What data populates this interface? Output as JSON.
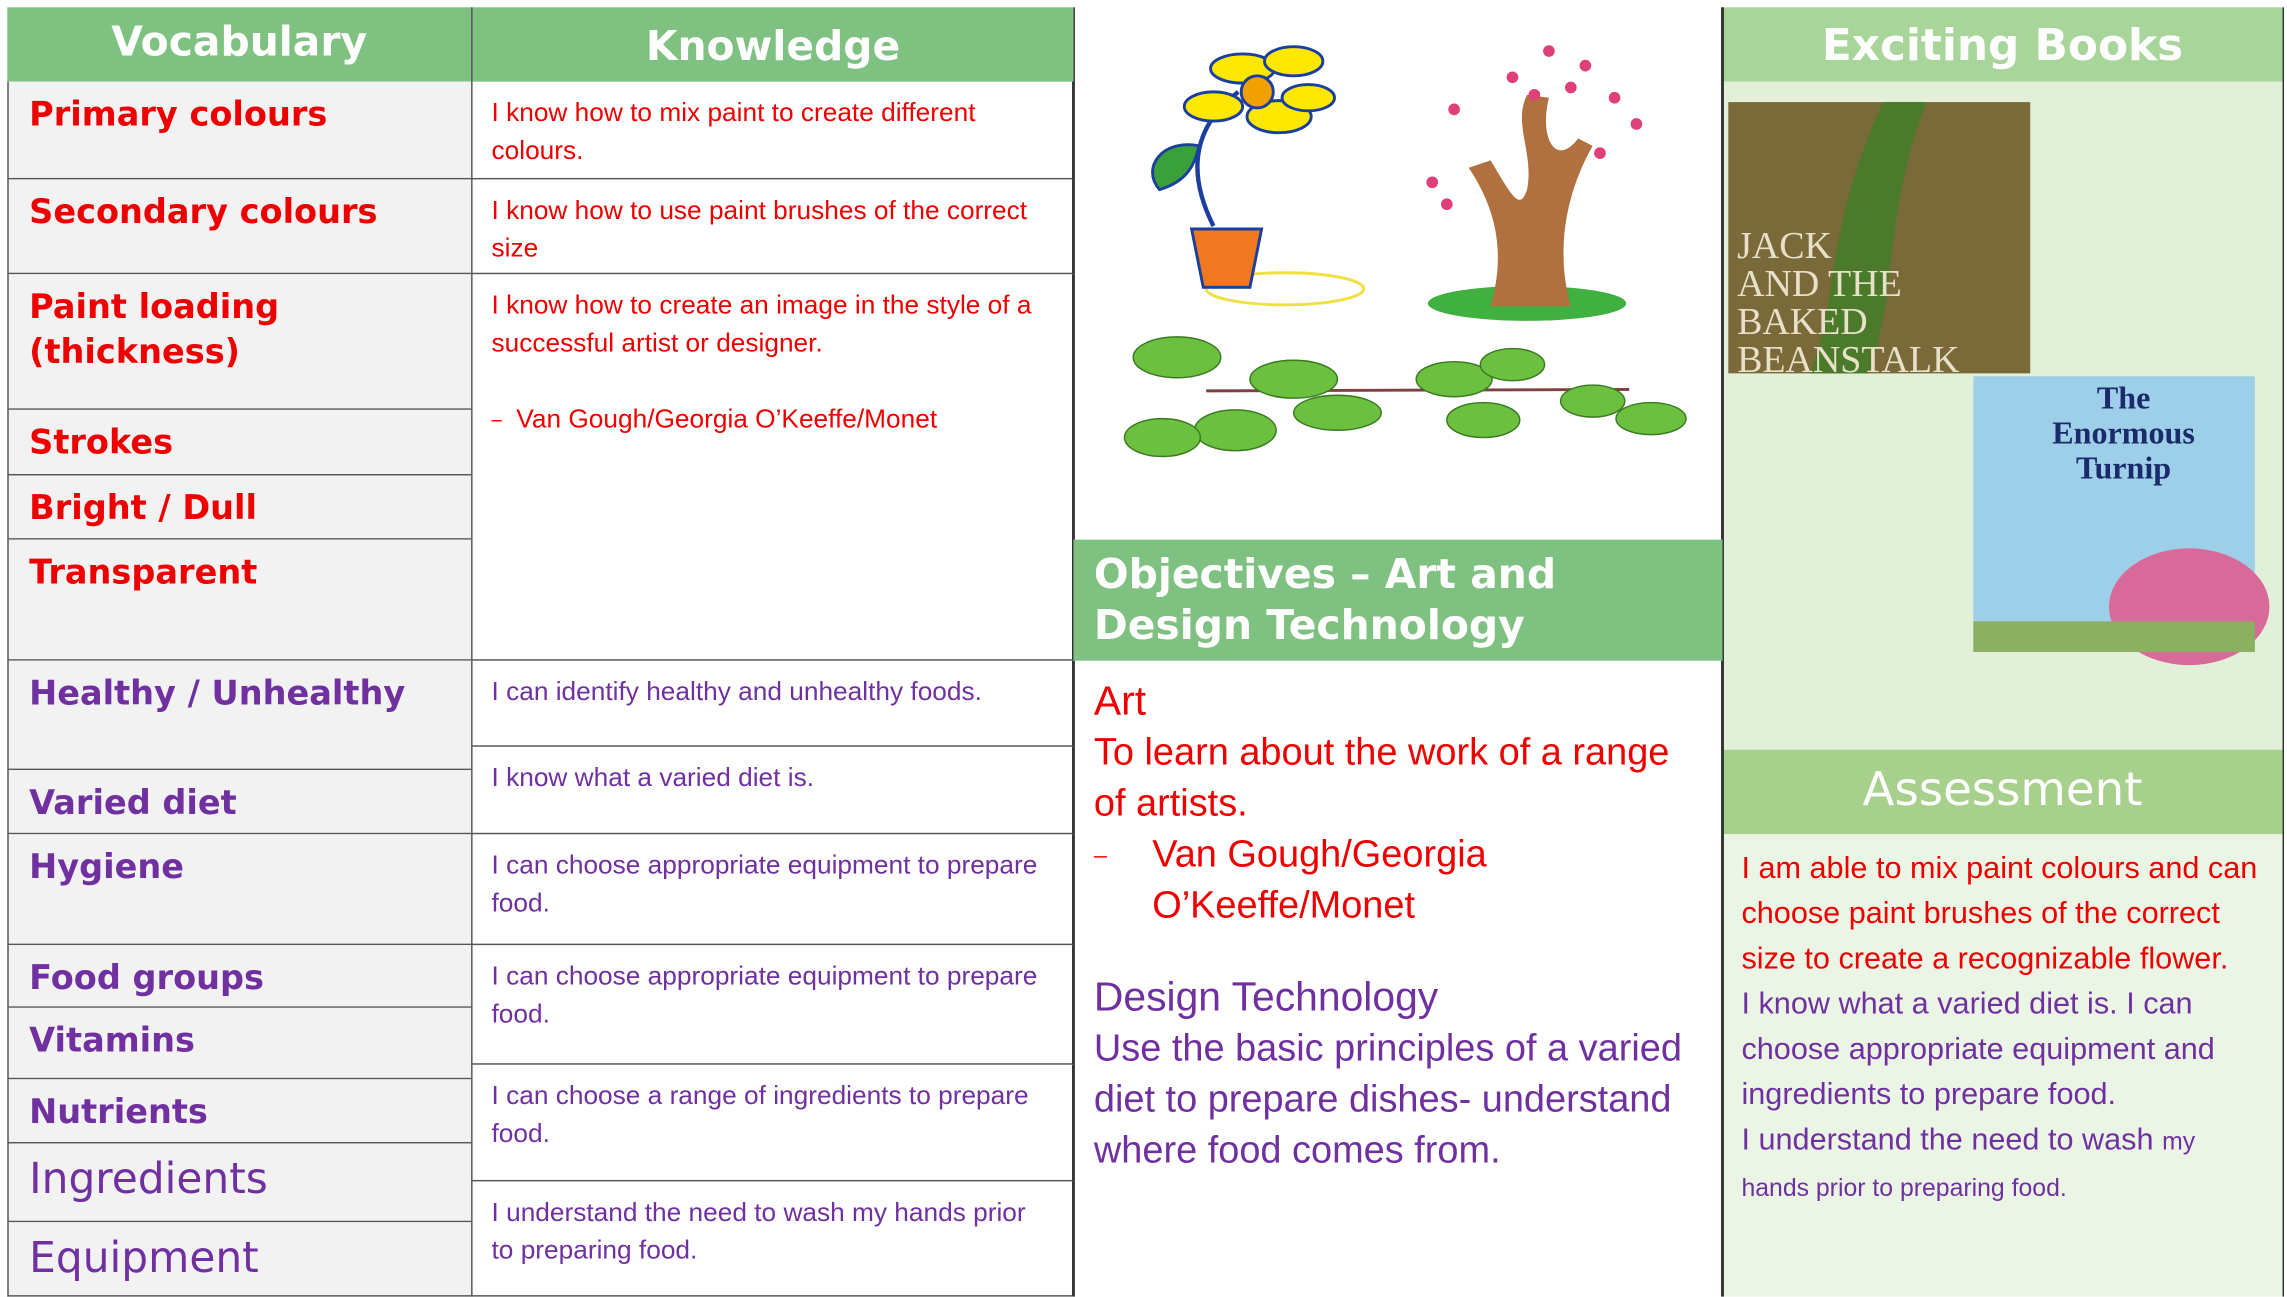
{
  "vocabulary": {
    "header": "Vocabulary",
    "items": [
      "Primary colours",
      "Secondary colours",
      "Paint loading (thickness)",
      "Strokes",
      "Bright / Dull",
      "Transparent",
      "Healthy / Unhealthy",
      "Varied diet",
      "Hygiene",
      "Food groups",
      "Vitamins",
      "Nutrients",
      "Ingredients",
      "Equipment"
    ]
  },
  "knowledge": {
    "header": "Knowledge",
    "items": [
      "I know how to mix paint to create different colours.",
      "I know how to use paint brushes of the correct size",
      "I know how to create an image in the style of a successful artist or designer.",
      "I can identify healthy and unhealthy foods.",
      "I know what a varied diet is.",
      "I can choose appropriate equipment to prepare food.",
      "I can choose appropriate equipment to prepare food.",
      "I can choose a range of ingredients to prepare food.",
      "I understand the need to wash my hands prior to preparing food."
    ],
    "artists": "Van Gough/Georgia O’Keeffe/Monet"
  },
  "objectives": {
    "header": "Objectives – Art and Design Technology",
    "art_title": "Art",
    "art_text": "To learn about the work of a range of artists.",
    "art_artists": "Van Gough/Georgia O’Keeffe/Monet",
    "dt_title": "Design Technology",
    "dt_text": "Use the basic principles of a varied diet to prepare dishes- understand where food comes from."
  },
  "books": {
    "header": "Exciting Books",
    "items": [
      {
        "lines": [
          "JACK",
          "AND THE",
          "BAKED",
          "BEANSTALK"
        ]
      },
      {
        "lines": [
          "The",
          "Enormous",
          "Turnip"
        ]
      }
    ]
  },
  "assessment": {
    "header": "Assessment",
    "art": "I am able to mix paint colours and can choose paint brushes of the correct size to create a recognizable flower.",
    "dt": "I know what a varied diet is.  I can choose appropriate equipment and ingredients to prepare food.",
    "hygiene": "I understand the need to wash",
    "hygiene_small": "my hands prior to preparing food."
  }
}
